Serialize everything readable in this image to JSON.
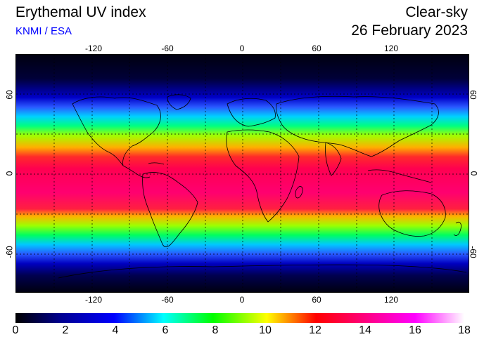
{
  "header": {
    "title": "Erythemal UV index",
    "credit": "KNMI / ESA",
    "condition": "Clear-sky",
    "date": "26 February 2023"
  },
  "map": {
    "lon_ticks": [
      "-120",
      "-60",
      "0",
      "60",
      "120"
    ],
    "lat_ticks_left": [
      "60",
      "0",
      "-60"
    ],
    "lat_ticks_right": [
      "60",
      "0",
      "-60"
    ]
  },
  "colorbar": {
    "ticks": [
      "0",
      "2",
      "4",
      "6",
      "8",
      "10",
      "12",
      "14",
      "16",
      "18"
    ],
    "min": 0,
    "max": 18
  }
}
